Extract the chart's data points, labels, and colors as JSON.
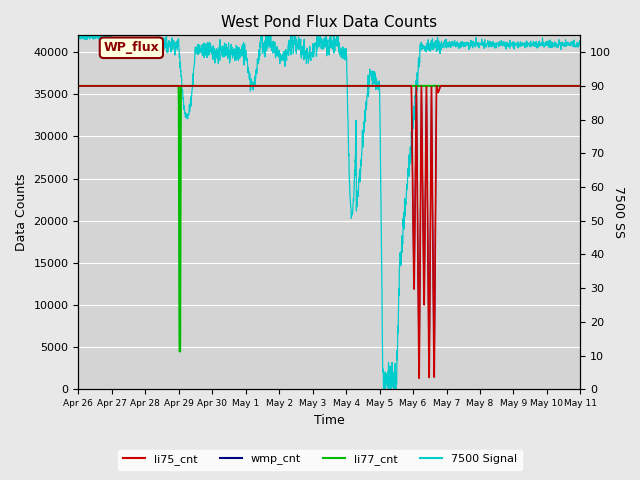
{
  "title": "West Pond Flux Data Counts",
  "xlabel": "Time",
  "ylabel_left": "Data Counts",
  "ylabel_right": "7500 SS",
  "ylim_left": [
    0,
    42000
  ],
  "ylim_right": [
    0,
    105
  ],
  "fig_facecolor": "#e8e8e8",
  "ax_facecolor": "#d4d4d4",
  "title_fontsize": 11,
  "annotation_text": "WP_flux",
  "legend_items": [
    "li75_cnt",
    "wmp_cnt",
    "li77_cnt",
    "7500 Signal"
  ],
  "legend_colors": [
    "#cc0000",
    "#000080",
    "#00bb00",
    "#00cccc"
  ],
  "xtick_labels": [
    "Apr 26",
    "Apr 27",
    "Apr 28",
    "Apr 29",
    "Apr 30",
    "May 1",
    "May 2",
    "May 3",
    "May 4",
    "May 5",
    "May 6",
    "May 7",
    "May 8",
    "May 9",
    "May 10",
    "May 11"
  ],
  "li77_level": 36000,
  "li77_color": "#00bb00",
  "li75_color": "#cc0000",
  "wmp_color": "#000080",
  "cyan_color": "#00cccc",
  "grid_color": "#ffffff"
}
